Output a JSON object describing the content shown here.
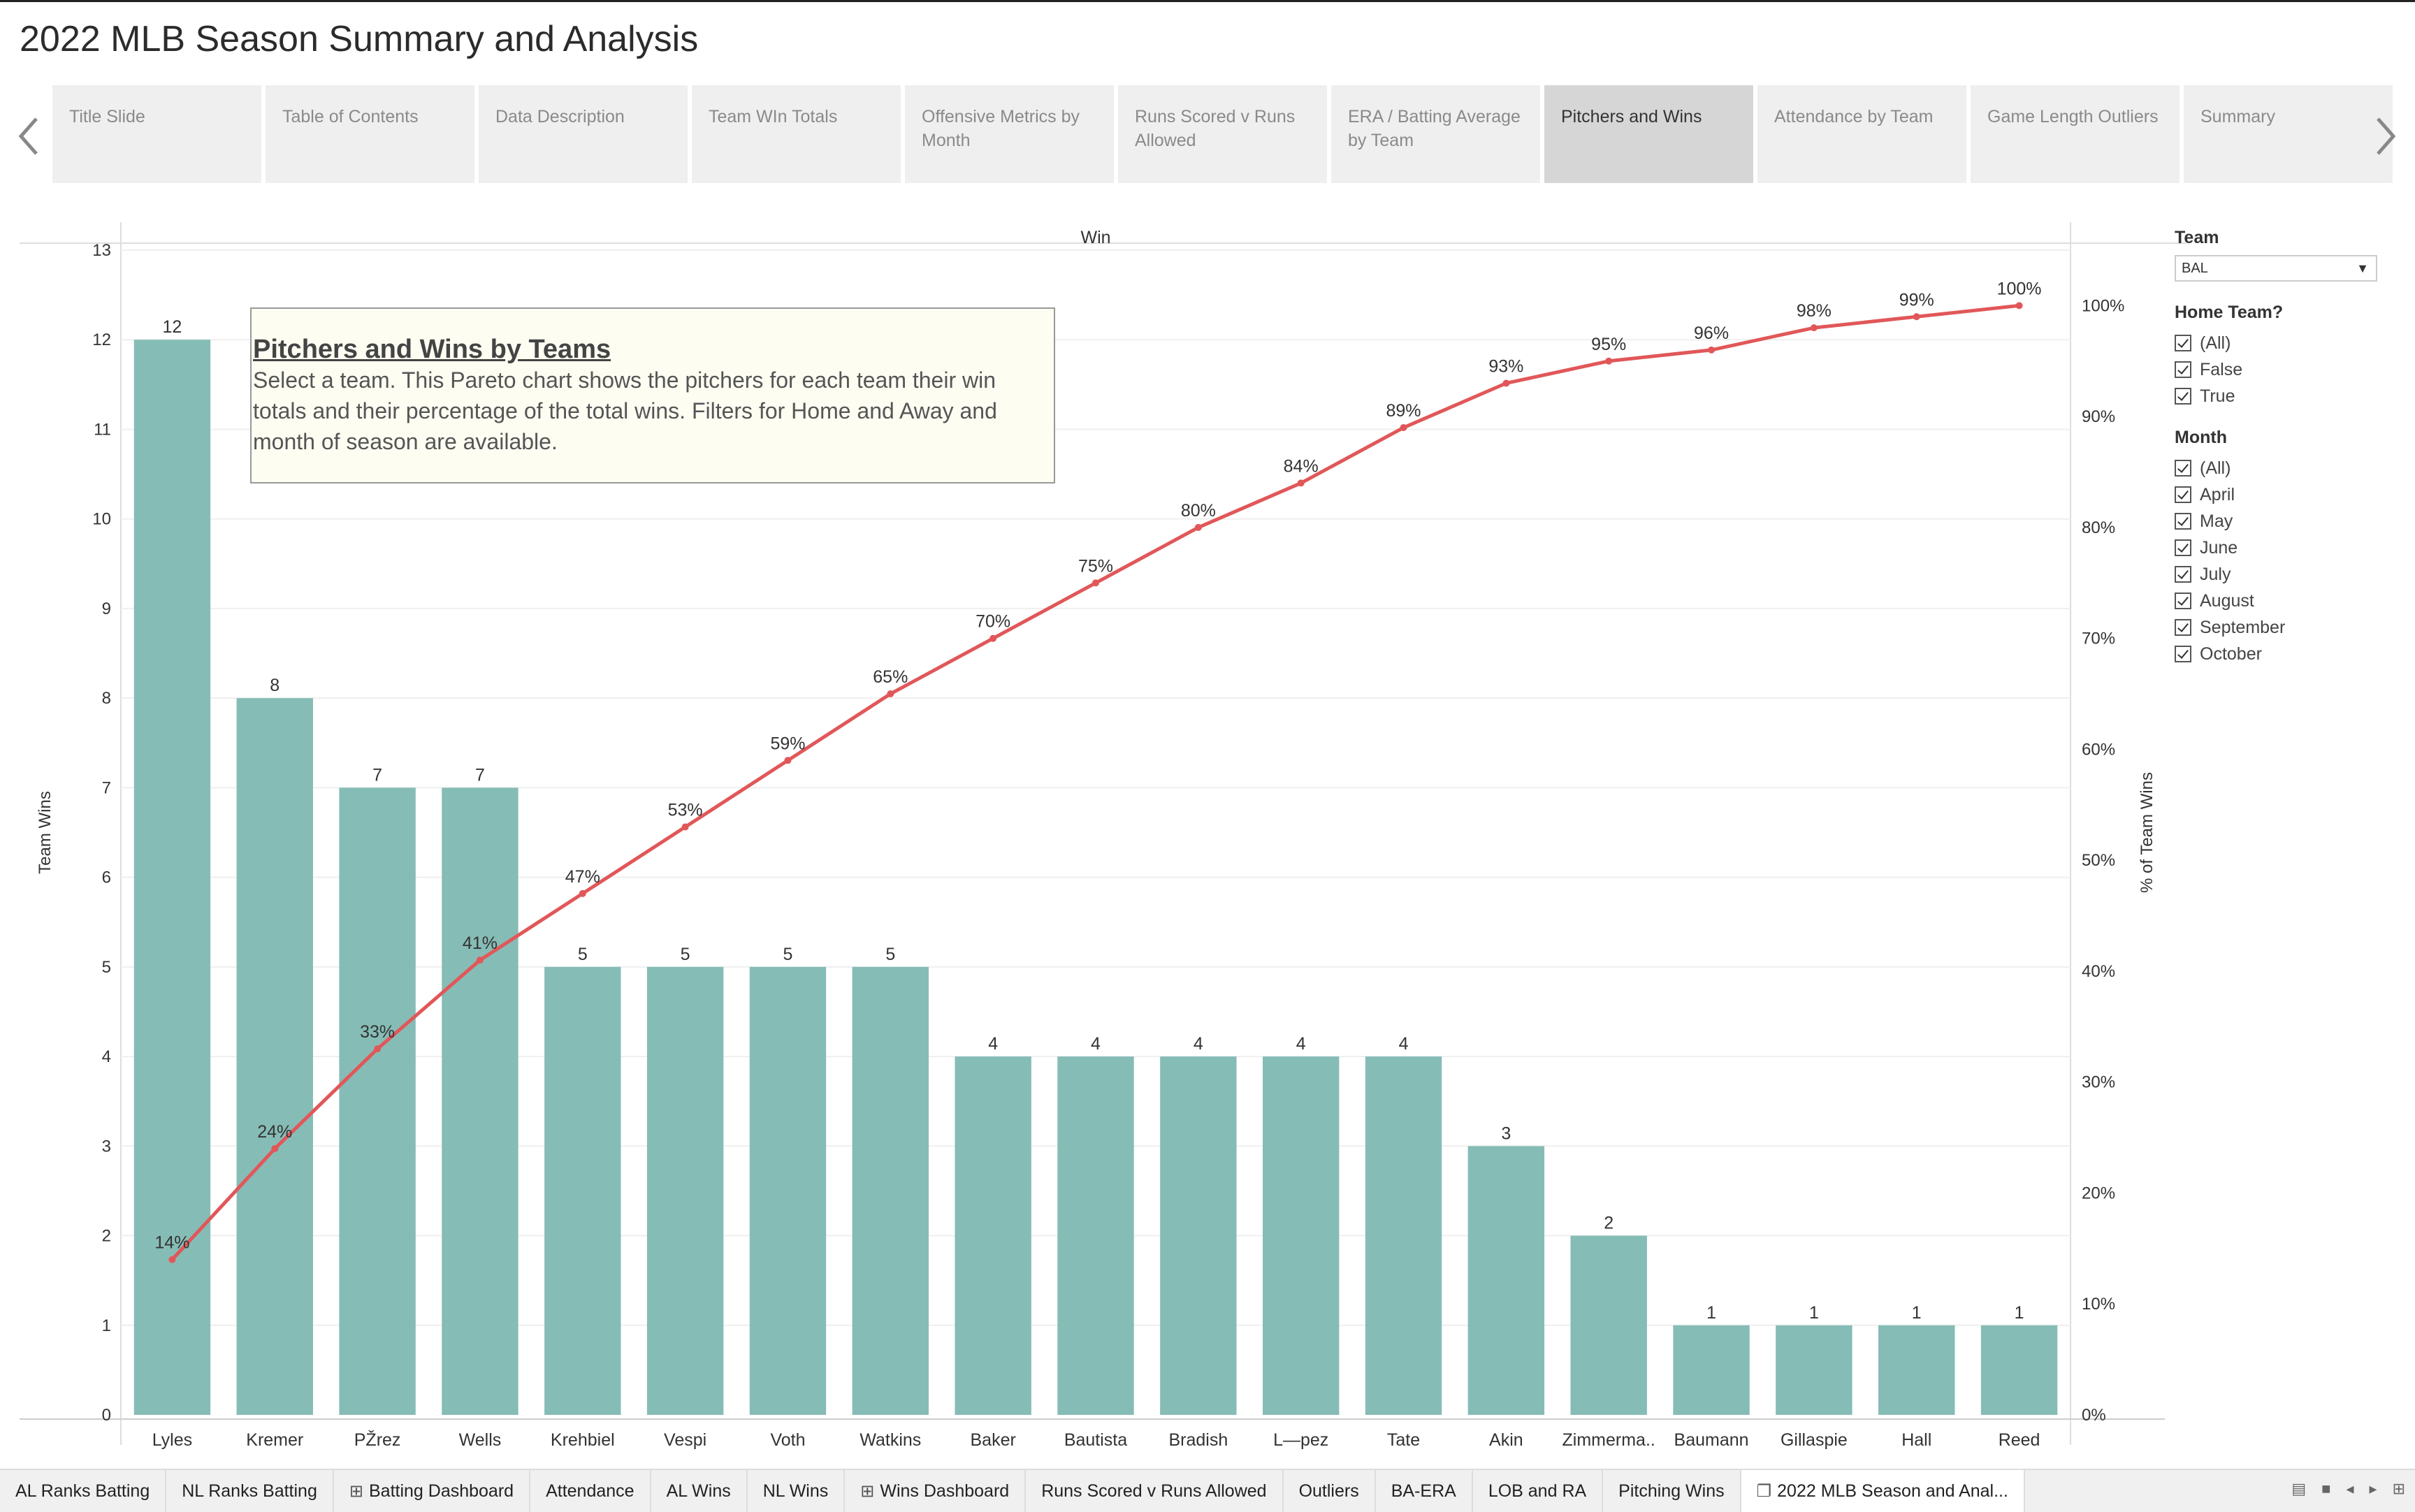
{
  "story": {
    "title": "2022 MLB Season Summary and Analysis",
    "prev_icon": "chevron-left-icon",
    "next_icon": "chevron-right-icon",
    "points": [
      {
        "label": "Title Slide"
      },
      {
        "label": "Table of Contents"
      },
      {
        "label": "Data Description"
      },
      {
        "label": "Team WIn Totals"
      },
      {
        "label": "Offensive Metrics by Month"
      },
      {
        "label": "Runs Scored v Runs Allowed"
      },
      {
        "label": "ERA / Batting Average by Team"
      },
      {
        "label": "Pitchers and Wins",
        "active": true
      },
      {
        "label": "Attendance by Team"
      },
      {
        "label": "Game Length Outliers"
      },
      {
        "label": "Summary"
      }
    ]
  },
  "annotation": {
    "title": "Pitchers and Wins by Teams",
    "body_lines": [
      "Select a team. This Pareto chart shows the pitchers for each team their win",
      "totals and their percentage of the total wins. Filters for Home and Away and",
      "month of season are available."
    ]
  },
  "chart_data": {
    "type": "bar",
    "title": "",
    "column_header": "Win",
    "categories": [
      "Lyles",
      "Kremer",
      "PŽrez",
      "Wells",
      "Krehbiel",
      "Vespi",
      "Voth",
      "Watkins",
      "Baker",
      "Bautista",
      "Bradish",
      "L—pez",
      "Tate",
      "Akin",
      "Zimmerma..",
      "Baumann",
      "Gillaspie",
      "Hall",
      "Reed"
    ],
    "series": [
      {
        "name": "Team Wins",
        "type": "bar",
        "values": [
          12,
          8,
          7,
          7,
          5,
          5,
          5,
          5,
          4,
          4,
          4,
          4,
          4,
          3,
          2,
          1,
          1,
          1,
          1
        ],
        "color": "#86bcb6"
      },
      {
        "name": "% of Team Wins",
        "type": "line",
        "values": [
          14,
          24,
          33,
          41,
          47,
          53,
          59,
          65,
          70,
          75,
          80,
          84,
          89,
          93,
          95,
          96,
          98,
          99,
          100
        ],
        "labels": [
          "14%",
          "24%",
          "33%",
          "41%",
          "47%",
          "53%",
          "59%",
          "65%",
          "70%",
          "75%",
          "80%",
          "84%",
          "89%",
          "93%",
          "95%",
          "96%",
          "98%",
          "99%",
          "100%"
        ],
        "color": "#e15759"
      }
    ],
    "ylabel": "Team Wins",
    "y2label": "% of Team Wins",
    "ylim": [
      0,
      13
    ],
    "yticks": [
      "0",
      "1",
      "2",
      "3",
      "4",
      "5",
      "6",
      "7",
      "8",
      "9",
      "10",
      "11",
      "12",
      "13"
    ],
    "y2lim": [
      0,
      105
    ],
    "y2ticks": [
      "0%",
      "10%",
      "20%",
      "30%",
      "40%",
      "50%",
      "60%",
      "70%",
      "80%",
      "90%",
      "100%"
    ],
    "grid": true
  },
  "filters": {
    "team": {
      "label": "Team",
      "value": "BAL"
    },
    "home_team": {
      "label": "Home Team?",
      "options": [
        "(All)",
        "False",
        "True"
      ]
    },
    "month": {
      "label": "Month",
      "options": [
        "(All)",
        "April",
        "May",
        "June",
        "July",
        "August",
        "September",
        "October"
      ]
    }
  },
  "sheet_tabs": [
    {
      "label": "AL Ranks Batting"
    },
    {
      "label": "NL Ranks Batting"
    },
    {
      "label": "Batting Dashboard",
      "icon": "dashboard-icon"
    },
    {
      "label": "Attendance"
    },
    {
      "label": "AL Wins"
    },
    {
      "label": "NL Wins"
    },
    {
      "label": "Wins Dashboard",
      "icon": "dashboard-icon"
    },
    {
      "label": "Runs Scored v Runs Allowed"
    },
    {
      "label": "Outliers"
    },
    {
      "label": "BA-ERA"
    },
    {
      "label": "LOB and RA"
    },
    {
      "label": "Pitching Wins"
    },
    {
      "label": "2022 MLB Season and Anal...",
      "icon": "story-icon",
      "active": true
    }
  ],
  "colors": {
    "bar": "#86bcb6",
    "line": "#e15759",
    "active_tab": "#d6d6d6"
  }
}
